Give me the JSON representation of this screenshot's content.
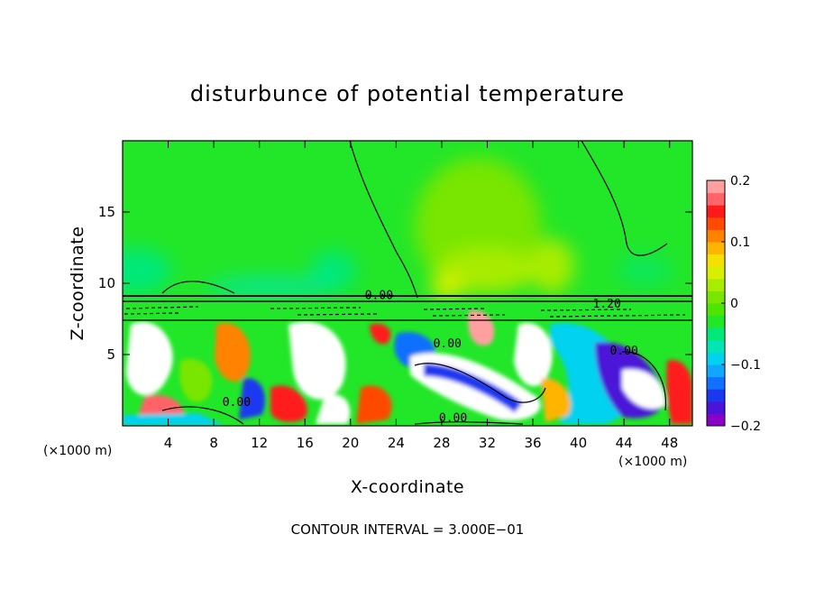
{
  "chart_data": {
    "type": "heatmap",
    "title": "disturbunce of potential temperature",
    "xlabel": "X-coordinate",
    "ylabel": "Z-coordinate",
    "x_unit": "(×1000 m)",
    "x_unit_right": "(×1000 m)",
    "xlim": [
      0,
      50
    ],
    "ylim": [
      0,
      20
    ],
    "x_ticks": [
      4,
      8,
      12,
      16,
      20,
      24,
      28,
      32,
      36,
      40,
      44,
      48
    ],
    "y_ticks": [
      5,
      10,
      15
    ],
    "colorbar": {
      "min": -0.2,
      "max": 0.2,
      "ticks": [
        {
          "value": 0.2,
          "label": "0.2"
        },
        {
          "value": 0.1,
          "label": "0.1"
        },
        {
          "value": 0.0,
          "label": "0"
        },
        {
          "value": -0.1,
          "label": "−0.1"
        },
        {
          "value": -0.2,
          "label": "−0.2"
        }
      ],
      "colors": [
        "#8a00c8",
        "#4b14d8",
        "#1c37f0",
        "#1070ff",
        "#10a8ff",
        "#00d2f0",
        "#00e6b4",
        "#00e878",
        "#22e628",
        "#4ee600",
        "#78e600",
        "#a8ec00",
        "#d8f000",
        "#f6e000",
        "#ffb400",
        "#ff8200",
        "#ff4a00",
        "#ff1a1a",
        "#ff6468",
        "#ffa0a0"
      ]
    },
    "contour_labels": [
      {
        "text": "0.00",
        "x": 10,
        "z": 1.4
      },
      {
        "text": "0.00",
        "x": 28.5,
        "z": 5.5
      },
      {
        "text": "0.00",
        "x": 44,
        "z": 5.0
      },
      {
        "text": "0.00",
        "x": 29,
        "z": 0.3
      },
      {
        "text": "0.00",
        "x": 22.5,
        "z": 8.9
      },
      {
        "text": "1.20",
        "x": 42.5,
        "z": 8.3
      }
    ],
    "annotation": "CONTOUR INTERVAL = 3.000E−01"
  }
}
